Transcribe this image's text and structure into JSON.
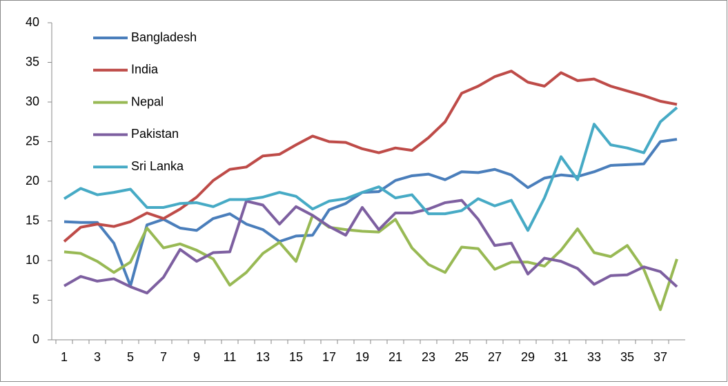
{
  "chart_data": {
    "type": "line",
    "categories": [
      1,
      null,
      3,
      null,
      5,
      null,
      7,
      null,
      9,
      null,
      11,
      null,
      13,
      null,
      15,
      null,
      17,
      null,
      19,
      null,
      21,
      null,
      23,
      null,
      25,
      null,
      27,
      null,
      29,
      null,
      31,
      null,
      33,
      null,
      35,
      null,
      37,
      null
    ],
    "series": [
      {
        "name": "Bangladesh",
        "color": "#4a7ebb",
        "values": [
          14.9,
          14.8,
          14.8,
          12.2,
          6.8,
          14.5,
          15.2,
          14.1,
          13.8,
          15.3,
          15.9,
          14.6,
          13.9,
          12.4,
          13.1,
          13.2,
          16.4,
          17.2,
          18.6,
          18.7,
          20.1,
          20.7,
          20.9,
          20.2,
          21.2,
          21.1,
          21.5,
          20.8,
          19.2,
          20.4,
          20.8,
          20.6,
          21.2,
          22.0,
          22.1,
          22.2,
          25.0,
          25.3
        ]
      },
      {
        "name": "India",
        "color": "#be4b48",
        "values": [
          12.4,
          14.2,
          14.6,
          14.3,
          14.9,
          16.0,
          15.3,
          16.5,
          18.0,
          20.1,
          21.5,
          21.8,
          23.2,
          23.4,
          24.6,
          25.7,
          25.0,
          24.9,
          24.1,
          23.6,
          24.2,
          23.9,
          25.5,
          27.5,
          31.1,
          32.0,
          33.2,
          33.9,
          32.5,
          32.0,
          33.7,
          32.7,
          32.9,
          32.0,
          31.4,
          30.8,
          30.1,
          29.7
        ]
      },
      {
        "name": "Nepal",
        "color": "#98b954",
        "values": [
          11.1,
          10.9,
          9.9,
          8.5,
          9.8,
          14.1,
          11.6,
          12.1,
          11.3,
          10.2,
          6.9,
          8.5,
          10.9,
          12.3,
          9.9,
          15.7,
          14.2,
          13.9,
          13.7,
          13.6,
          15.2,
          11.6,
          9.5,
          8.5,
          11.7,
          11.5,
          8.9,
          9.8,
          9.8,
          9.3,
          11.3,
          14.0,
          11.0,
          10.5,
          11.9,
          8.9,
          3.8,
          10.2
        ]
      },
      {
        "name": "Pakistan",
        "color": "#7d5fa0",
        "values": [
          6.8,
          8.0,
          7.4,
          7.7,
          6.7,
          5.9,
          7.9,
          11.4,
          9.9,
          11.0,
          11.1,
          17.5,
          17.0,
          14.6,
          16.8,
          15.7,
          14.3,
          13.2,
          16.7,
          13.9,
          16.0,
          16.0,
          16.5,
          17.3,
          17.6,
          15.2,
          11.9,
          12.2,
          8.3,
          10.3,
          9.9,
          9.0,
          7.0,
          8.1,
          8.2,
          9.2,
          8.6,
          6.7
        ]
      },
      {
        "name": "Sri Lanka",
        "color": "#46aac5",
        "values": [
          17.8,
          19.1,
          18.3,
          18.6,
          19.0,
          16.7,
          16.7,
          17.2,
          17.3,
          16.8,
          17.7,
          17.7,
          18.0,
          18.6,
          18.1,
          16.5,
          17.5,
          17.8,
          18.6,
          19.3,
          17.9,
          18.3,
          15.9,
          15.9,
          16.3,
          17.8,
          16.9,
          17.6,
          13.8,
          17.9,
          23.1,
          20.2,
          27.2,
          24.6,
          24.2,
          23.6,
          27.5,
          29.3
        ]
      }
    ],
    "ylim": [
      0,
      40
    ],
    "yticks": [
      0,
      5,
      10,
      15,
      20,
      25,
      30,
      35,
      40
    ],
    "legend": "top-left"
  }
}
